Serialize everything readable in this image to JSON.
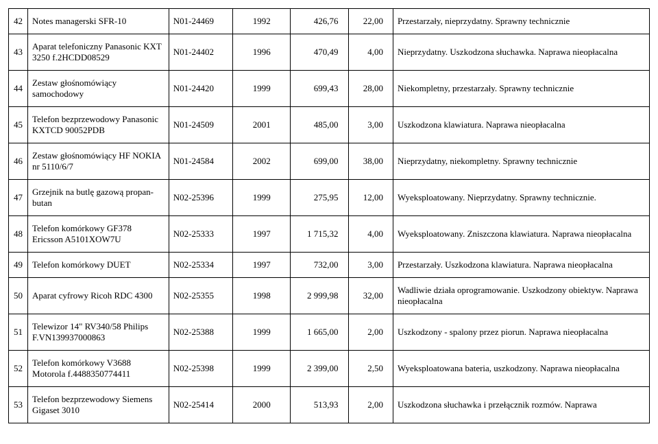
{
  "columns": [
    "no",
    "name",
    "code",
    "year",
    "value",
    "qty",
    "desc"
  ],
  "rows": [
    {
      "no": "42",
      "name": "Notes managerski SFR-10",
      "code": "N01-24469",
      "year": "1992",
      "value": "426,76",
      "qty": "22,00",
      "desc": "Przestarzały, nieprzydatny. Sprawny technicznie"
    },
    {
      "no": "43",
      "name": "Aparat telefoniczny Panasonic KXT 3250 f.2HCDD08529",
      "code": "N01-24402",
      "year": "1996",
      "value": "470,49",
      "qty": "4,00",
      "desc": "Nieprzydatny. Uszkodzona słuchawka. Naprawa nieopłacalna"
    },
    {
      "no": "44",
      "name": "Zestaw głośnomówiący samochodowy",
      "code": "N01-24420",
      "year": "1999",
      "value": "699,43",
      "qty": "28,00",
      "desc": "Niekompletny, przestarzały. Sprawny technicznie"
    },
    {
      "no": "45",
      "name": "Telefon bezprzewodowy Panasonic KXTCD 90052PDB",
      "code": "N01-24509",
      "year": "2001",
      "value": "485,00",
      "qty": "3,00",
      "desc": "Uszkodzona klawiatura. Naprawa nieopłacalna"
    },
    {
      "no": "46",
      "name": "Zestaw głośnomówiący HF NOKIA nr 5110/6/7",
      "code": "N01-24584",
      "year": "2002",
      "value": "699,00",
      "qty": "38,00",
      "desc": "Nieprzydatny, niekompletny. Sprawny technicznie"
    },
    {
      "no": "47",
      "name": "Grzejnik na butlę gazową propan-butan",
      "code": "N02-25396",
      "year": "1999",
      "value": "275,95",
      "qty": "12,00",
      "desc": "Wyeksploatowany. Nieprzydatny. Sprawny technicznie."
    },
    {
      "no": "48",
      "name": "Telefon komórkowy GF378 Ericsson A5101XOW7U",
      "code": "N02-25333",
      "year": "1997",
      "value": "1 715,32",
      "qty": "4,00",
      "desc": "Wyeksploatowany. Zniszczona klawiatura. Naprawa nieopłacalna"
    },
    {
      "no": "49",
      "name": "Telefon komórkowy DUET",
      "code": "N02-25334",
      "year": "1997",
      "value": "732,00",
      "qty": "3,00",
      "desc": "Przestarzały. Uszkodzona klawiatura. Naprawa nieopłacalna"
    },
    {
      "no": "50",
      "name": "Aparat cyfrowy Ricoh RDC 4300",
      "code": "N02-25355",
      "year": "1998",
      "value": "2 999,98",
      "qty": "32,00",
      "desc": "Wadliwie działa oprogramowanie. Uszkodzony obiektyw. Naprawa nieopłacalna"
    },
    {
      "no": "51",
      "name": "Telewizor 14\" RV340/58 Philips  F.VN139937000863",
      "code": "N02-25388",
      "year": "1999",
      "value": "1 665,00",
      "qty": "2,00",
      "desc": "Uszkodzony - spalony przez piorun. Naprawa nieopłacalna"
    },
    {
      "no": "52",
      "name": "Telefon komórkowy V3688 Motorola f.4488350774411",
      "code": "N02-25398",
      "year": "1999",
      "value": "2 399,00",
      "qty": "2,50",
      "desc": "Wyeksploatowana bateria, uszkodzony. Naprawa nieopłacalna"
    },
    {
      "no": "53",
      "name": "Telefon bezprzewodowy Siemens Gigaset 3010",
      "code": "N02-25414",
      "year": "2000",
      "value": "513,93",
      "qty": "2,00",
      "desc": "Uszkodzona słuchawka i przełącznik rozmów. Naprawa"
    }
  ],
  "style": {
    "font_family": "Times New Roman",
    "font_size_pt": 10,
    "border_color": "#000000",
    "background_color": "#ffffff",
    "text_color": "#000000",
    "col_widths_pct": [
      3,
      22,
      10,
      9,
      9,
      7,
      40
    ],
    "cell_padding_px": "10 6"
  }
}
